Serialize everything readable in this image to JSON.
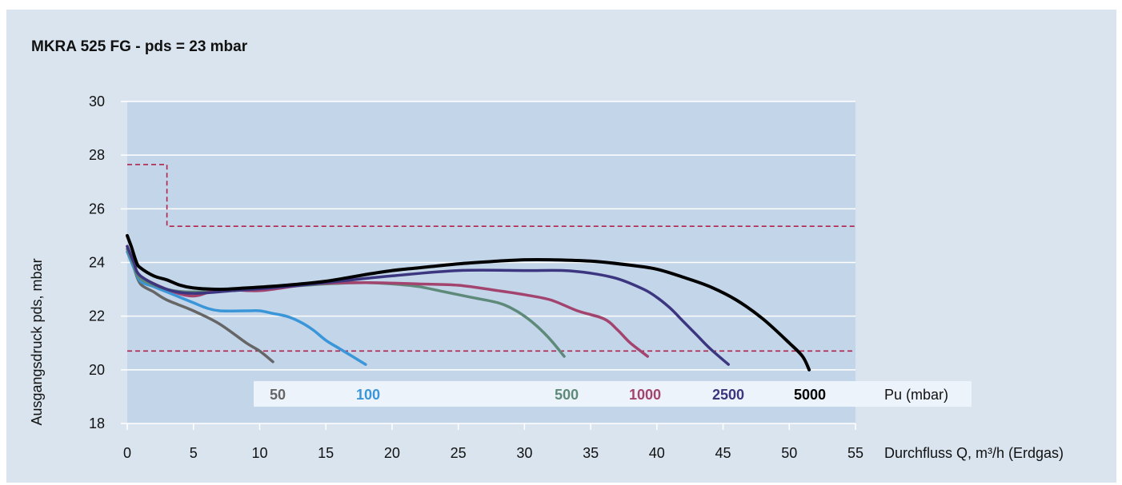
{
  "chart_data": {
    "type": "line",
    "title": "MKRA 525 FG - pds = 23 mbar",
    "xlabel": "Durchfluss Q, m³/h (Erdgas)",
    "ylabel": "Ausgangsdruck pds, mbar",
    "xlim": [
      0,
      55
    ],
    "ylim": [
      18,
      30
    ],
    "xticks": [
      "0",
      "5",
      "10",
      "15",
      "20",
      "25",
      "30",
      "35",
      "40",
      "45",
      "50",
      "55"
    ],
    "yticks": [
      "30",
      "28",
      "26",
      "24",
      "22",
      "20",
      "18"
    ],
    "grid": "horizontal",
    "legend_title": "Pu (mbar)",
    "limits": [
      {
        "kind": "upper",
        "x": [
          0,
          3,
          3,
          55
        ],
        "y": [
          27.65,
          27.65,
          25.35,
          25.35
        ],
        "color": "#b2234b"
      },
      {
        "kind": "lower",
        "x": [
          0,
          55
        ],
        "y": [
          20.7,
          20.7
        ],
        "color": "#b2234b"
      }
    ],
    "series": [
      {
        "name": "50",
        "color": "#666666",
        "x": [
          0,
          0.5,
          1,
          2,
          3,
          5,
          7,
          9,
          10,
          11
        ],
        "y": [
          24.5,
          23.8,
          23.2,
          22.9,
          22.6,
          22.2,
          21.7,
          21.0,
          20.7,
          20.3
        ]
      },
      {
        "name": "100",
        "color": "#3a96d8",
        "x": [
          0,
          0.5,
          1,
          2,
          3,
          4,
          5,
          6,
          7,
          9,
          10,
          11,
          12,
          13,
          14,
          15,
          16,
          17,
          18
        ],
        "y": [
          24.4,
          23.8,
          23.3,
          23.1,
          22.9,
          22.7,
          22.5,
          22.3,
          22.2,
          22.2,
          22.2,
          22.1,
          22.0,
          21.8,
          21.5,
          21.1,
          20.8,
          20.5,
          20.2
        ]
      },
      {
        "name": "500",
        "color": "#5e8a7a",
        "x": [
          0,
          0.5,
          1,
          3,
          5,
          8,
          12,
          15,
          18,
          20,
          22,
          24,
          26,
          28,
          29,
          30,
          31,
          32,
          33
        ],
        "y": [
          24.5,
          23.9,
          23.4,
          23.0,
          22.9,
          23.0,
          23.1,
          23.2,
          23.25,
          23.2,
          23.1,
          22.9,
          22.7,
          22.5,
          22.3,
          22.0,
          21.6,
          21.1,
          20.5
        ]
      },
      {
        "name": "1000",
        "color": "#a3446f",
        "x": [
          0,
          0.5,
          1,
          3,
          5,
          7,
          10,
          14,
          18,
          22,
          25,
          28,
          30,
          32,
          34,
          36,
          37,
          38,
          39.3
        ],
        "y": [
          24.6,
          24.0,
          23.5,
          23.0,
          22.75,
          23.0,
          22.95,
          23.2,
          23.25,
          23.2,
          23.15,
          22.95,
          22.8,
          22.6,
          22.2,
          21.9,
          21.5,
          21.0,
          20.5
        ]
      },
      {
        "name": "2500",
        "color": "#3c3680",
        "x": [
          0,
          0.5,
          1,
          3,
          5,
          8,
          12,
          16,
          20,
          25,
          30,
          33,
          35,
          37,
          39,
          40,
          41,
          42,
          43,
          44,
          45.4
        ],
        "y": [
          24.6,
          24.0,
          23.5,
          23.0,
          22.85,
          22.95,
          23.1,
          23.3,
          23.5,
          23.7,
          23.7,
          23.7,
          23.6,
          23.4,
          23.0,
          22.7,
          22.3,
          21.8,
          21.3,
          20.8,
          20.2
        ]
      },
      {
        "name": "5000",
        "color": "#000000",
        "x": [
          0,
          0.3,
          0.7,
          1,
          2,
          3,
          4,
          5,
          7,
          9,
          12,
          15,
          18,
          20,
          22,
          25,
          28,
          30,
          32,
          35,
          38,
          40,
          42,
          44,
          46,
          48,
          50,
          51,
          51.5
        ],
        "y": [
          25.0,
          24.6,
          24.0,
          23.8,
          23.5,
          23.35,
          23.15,
          23.05,
          23.0,
          23.05,
          23.15,
          23.3,
          23.55,
          23.7,
          23.8,
          23.95,
          24.05,
          24.1,
          24.1,
          24.05,
          23.9,
          23.75,
          23.45,
          23.1,
          22.6,
          21.9,
          21.0,
          20.5,
          20.0
        ]
      }
    ]
  }
}
